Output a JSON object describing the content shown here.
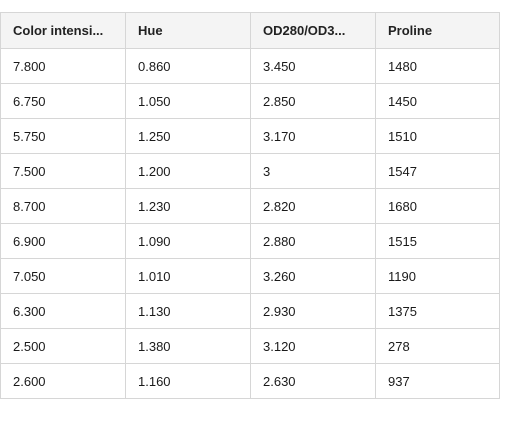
{
  "table": {
    "columns": [
      "Color intensi...",
      "Hue",
      "OD280/OD3...",
      "Proline"
    ],
    "rows": [
      [
        "7.800",
        "0.860",
        "3.450",
        "1480"
      ],
      [
        "6.750",
        "1.050",
        "2.850",
        "1450"
      ],
      [
        "5.750",
        "1.250",
        "3.170",
        "1510"
      ],
      [
        "7.500",
        "1.200",
        "3",
        "1547"
      ],
      [
        "8.700",
        "1.230",
        "2.820",
        "1680"
      ],
      [
        "6.900",
        "1.090",
        "2.880",
        "1515"
      ],
      [
        "7.050",
        "1.010",
        "3.260",
        "1190"
      ],
      [
        "6.300",
        "1.130",
        "2.930",
        "1375"
      ],
      [
        "2.500",
        "1.380",
        "3.120",
        "278"
      ],
      [
        "2.600",
        "1.160",
        "2.630",
        "937"
      ]
    ]
  }
}
